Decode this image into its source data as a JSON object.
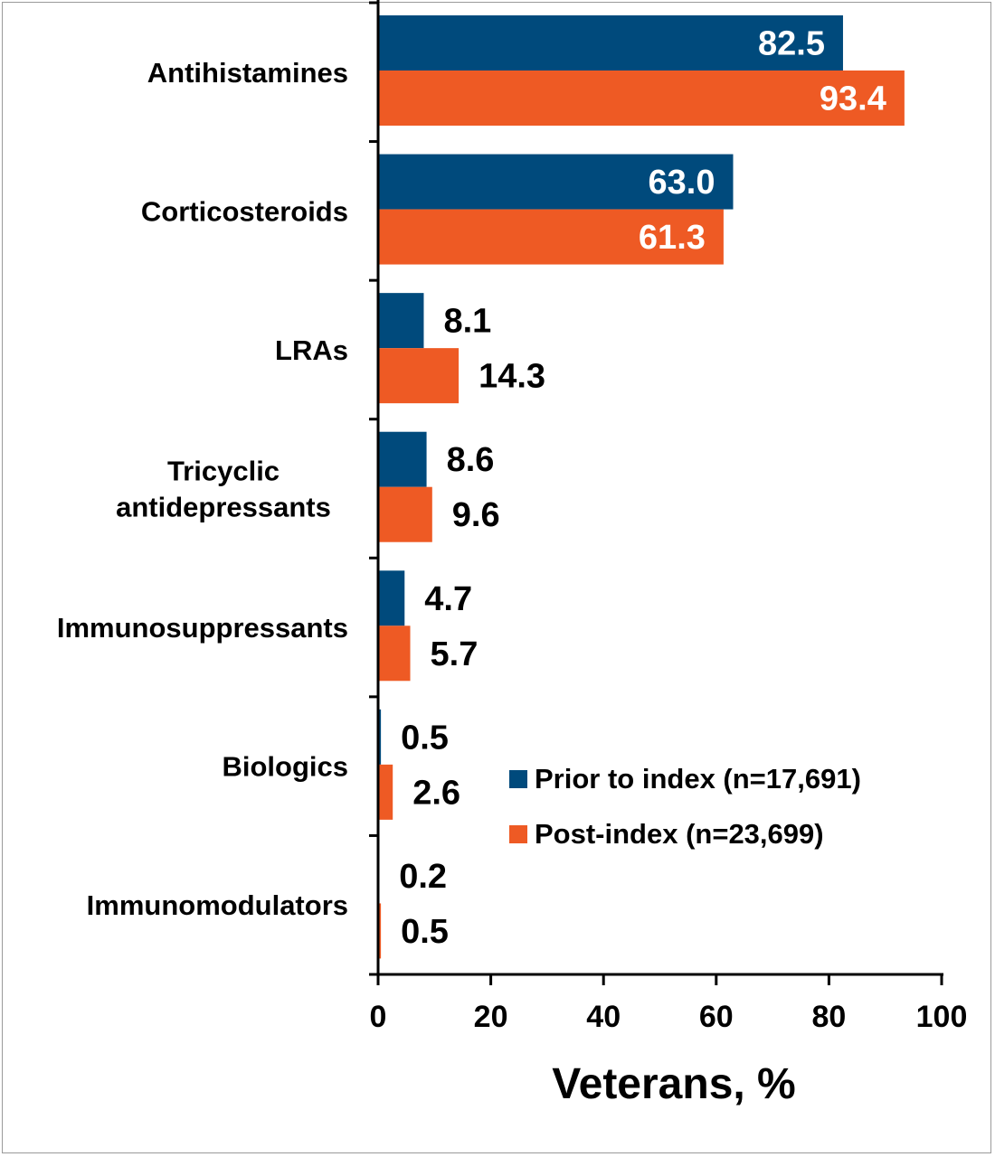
{
  "chart_data": {
    "type": "bar",
    "orientation": "horizontal",
    "categories": [
      "Antihistamines",
      "Corticosteroids",
      "LRAs",
      "Tricyclic antidepressants",
      "Immunosuppressants",
      "Biologics",
      "Immunomodulators"
    ],
    "category_lines": [
      [
        "Antihistamines"
      ],
      [
        "Corticosteroids"
      ],
      [
        "LRAs"
      ],
      [
        "Tricyclic",
        "antidepressants"
      ],
      [
        "Immunosuppressants"
      ],
      [
        "Biologics"
      ],
      [
        "Immunomodulators"
      ]
    ],
    "series": [
      {
        "name": "Prior to index (n=17,691)",
        "color": "#004A7C",
        "values": [
          82.5,
          63.0,
          8.1,
          8.6,
          4.7,
          0.5,
          0.2
        ],
        "labels": [
          "82.5",
          "63.0",
          "8.1",
          "8.6",
          "4.7",
          "0.5",
          "0.2"
        ]
      },
      {
        "name": "Post-index (n=23,699)",
        "color": "#EE5A24",
        "values": [
          93.4,
          61.3,
          14.3,
          9.6,
          5.7,
          2.6,
          0.5
        ],
        "labels": [
          "93.4",
          "61.3",
          "14.3",
          "9.6",
          "5.7",
          "2.6",
          "0.5"
        ]
      }
    ],
    "xlabel": "Veterans, %",
    "ylabel": "",
    "xlim": [
      0,
      100
    ],
    "xticks": [
      "0",
      "20",
      "40",
      "60",
      "80",
      "100"
    ],
    "grid": false,
    "legend_position": "lower-right",
    "label_color_inside": "#FFFFFF",
    "label_color_outside": "#000000"
  }
}
